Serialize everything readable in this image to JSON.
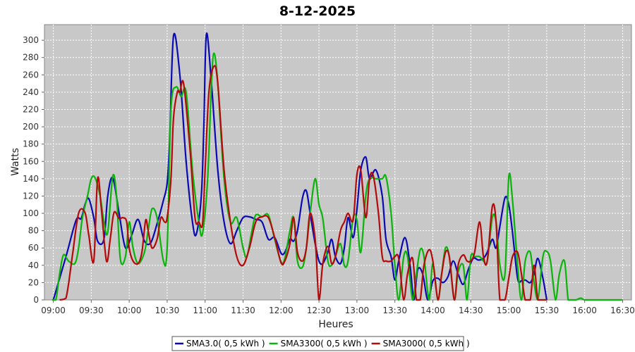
{
  "chart_data": {
    "type": "line",
    "title": "8-12-2025",
    "xlabel": "Heures",
    "ylabel": "Watts",
    "x_ticks": [
      "09:00",
      "09:30",
      "10:00",
      "10:30",
      "11:00",
      "11:30",
      "12:00",
      "12:30",
      "13:00",
      "13:30",
      "14:00",
      "14:30",
      "15:00",
      "15:30",
      "16:00",
      "16:30"
    ],
    "y_ticks": [
      0,
      20,
      40,
      60,
      80,
      100,
      120,
      140,
      160,
      180,
      200,
      220,
      240,
      260,
      280,
      300
    ],
    "xlim": [
      "08:53",
      "16:37"
    ],
    "ylim": [
      0,
      318
    ],
    "grid": true,
    "legend_position": "bottom",
    "background": "#c8c8c8",
    "series": [
      {
        "name": "SMA3.0( 0,5 kWh )",
        "color": "#0a0ab4",
        "x": [
          "09:00",
          "09:10",
          "09:18",
          "09:22",
          "09:25",
          "09:28",
          "09:32",
          "09:35",
          "09:40",
          "09:43",
          "09:47",
          "09:52",
          "09:57",
          "10:02",
          "10:07",
          "10:12",
          "10:17",
          "10:22",
          "10:27",
          "10:30",
          "10:32",
          "10:35",
          "10:40",
          "10:45",
          "10:50",
          "10:53",
          "10:57",
          "10:59",
          "11:01",
          "11:05",
          "11:10",
          "11:15",
          "11:20",
          "11:25",
          "11:30",
          "11:35",
          "11:40",
          "11:45",
          "11:50",
          "11:55",
          "12:00",
          "12:03",
          "12:07",
          "12:10",
          "12:13",
          "12:17",
          "12:20",
          "12:23",
          "12:27",
          "12:30",
          "12:33",
          "12:37",
          "12:40",
          "12:43",
          "12:47",
          "12:50",
          "12:53",
          "12:57",
          "13:00",
          "13:03",
          "13:07",
          "13:10",
          "13:15",
          "13:20",
          "13:23",
          "13:27",
          "13:30",
          "13:33",
          "13:38",
          "13:42",
          "13:45",
          "13:48",
          "13:52",
          "13:56",
          "14:00",
          "14:04",
          "14:08",
          "14:12",
          "14:16",
          "14:20",
          "14:24",
          "14:28",
          "14:32",
          "14:36",
          "14:40",
          "14:43",
          "14:47",
          "14:50",
          "14:53",
          "14:57",
          "15:00",
          "15:03",
          "15:07",
          "15:10",
          "15:13",
          "15:17",
          "15:20",
          "15:23",
          "15:27",
          "15:30"
        ],
        "y": [
          0,
          50,
          92,
          94,
          110,
          117,
          95,
          68,
          70,
          120,
          141,
          100,
          60,
          75,
          93,
          68,
          66,
          88,
          115,
          135,
          185,
          305,
          260,
          160,
          90,
          76,
          120,
          200,
          307,
          250,
          150,
          90,
          65,
          80,
          95,
          96,
          93,
          90,
          70,
          72,
          54,
          55,
          70,
          68,
          80,
          118,
          126,
          100,
          65,
          45,
          42,
          55,
          70,
          50,
          42,
          60,
          95,
          72,
          105,
          150,
          165,
          140,
          150,
          120,
          70,
          50,
          23,
          45,
          72,
          40,
          0,
          35,
          30,
          0,
          22,
          25,
          20,
          27,
          45,
          30,
          18,
          35,
          48,
          46,
          48,
          55,
          70,
          60,
          85,
          118,
          110,
          78,
          25,
          22,
          23,
          20,
          30,
          48,
          25,
          0
        ]
      },
      {
        "name": "SMA3300( 0,5 kWh )",
        "color": "#0ab40a",
        "x": [
          "08:59",
          "09:02",
          "09:05",
          "09:08",
          "09:12",
          "09:17",
          "09:20",
          "09:23",
          "09:27",
          "09:30",
          "09:33",
          "09:37",
          "09:40",
          "09:43",
          "09:47",
          "09:50",
          "09:53",
          "09:57",
          "10:00",
          "10:03",
          "10:07",
          "10:12",
          "10:15",
          "10:18",
          "10:22",
          "10:27",
          "10:30",
          "10:33",
          "10:37",
          "10:41",
          "10:45",
          "10:50",
          "10:55",
          "10:58",
          "11:02",
          "11:05",
          "11:07",
          "11:10",
          "11:15",
          "11:20",
          "11:25",
          "11:30",
          "11:33",
          "11:37",
          "11:40",
          "11:45",
          "11:50",
          "11:55",
          "12:00",
          "12:03",
          "12:07",
          "12:10",
          "12:13",
          "12:17",
          "12:20",
          "12:23",
          "12:27",
          "12:30",
          "12:33",
          "12:37",
          "12:40",
          "12:43",
          "12:47",
          "12:50",
          "12:53",
          "12:57",
          "13:00",
          "13:03",
          "13:07",
          "13:10",
          "13:15",
          "13:20",
          "13:23",
          "13:27",
          "13:30",
          "13:33",
          "13:37",
          "13:40",
          "13:44",
          "13:47",
          "13:50",
          "13:53",
          "13:57",
          "14:00",
          "14:04",
          "14:07",
          "14:10",
          "14:13",
          "14:17",
          "14:20",
          "14:24",
          "14:27",
          "14:30",
          "14:33",
          "14:37",
          "14:40",
          "14:43",
          "14:47",
          "14:50",
          "14:53",
          "14:57",
          "15:00",
          "15:03",
          "15:07",
          "15:10",
          "15:13",
          "15:17",
          "15:20",
          "15:23",
          "15:27",
          "15:30",
          "15:33",
          "15:37",
          "15:40",
          "15:44",
          "15:47",
          "15:50",
          "15:53",
          "15:57",
          "16:00",
          "16:10",
          "16:20",
          "16:30"
        ],
        "y": [
          0,
          0,
          30,
          52,
          45,
          42,
          60,
          95,
          120,
          140,
          141,
          120,
          90,
          78,
          143,
          120,
          47,
          50,
          90,
          60,
          42,
          55,
          80,
          105,
          95,
          45,
          60,
          220,
          246,
          235,
          240,
          150,
          90,
          77,
          140,
          250,
          285,
          250,
          140,
          90,
          95,
          60,
          50,
          80,
          98,
          96,
          98,
          70,
          44,
          48,
          80,
          95,
          45,
          38,
          60,
          100,
          140,
          110,
          94,
          45,
          40,
          50,
          65,
          40,
          45,
          95,
          92,
          55,
          120,
          140,
          140,
          140,
          142,
          100,
          40,
          0,
          50,
          50,
          0,
          30,
          58,
          50,
          0,
          42,
          0,
          30,
          60,
          50,
          0,
          32,
          40,
          0,
          50,
          50,
          50,
          45,
          45,
          95,
          90,
          40,
          30,
          142,
          115,
          40,
          0,
          45,
          55,
          20,
          0,
          50,
          56,
          45,
          0,
          30,
          45,
          0,
          0,
          0,
          2,
          0,
          0,
          0,
          0
        ]
      },
      {
        "name": "SMA3000( 0,5 kWh )",
        "color": "#b40a0a",
        "x": [
          "09:05",
          "09:10",
          "09:15",
          "09:20",
          "09:25",
          "09:28",
          "09:32",
          "09:35",
          "09:38",
          "09:42",
          "09:45",
          "09:48",
          "09:52",
          "09:55",
          "09:58",
          "10:00",
          "10:03",
          "10:07",
          "10:10",
          "10:13",
          "10:15",
          "10:18",
          "10:22",
          "10:25",
          "10:28",
          "10:30",
          "10:33",
          "10:35",
          "10:38",
          "10:40",
          "10:43",
          "10:48",
          "10:52",
          "10:55",
          "10:58",
          "11:00",
          "11:03",
          "11:07",
          "11:10",
          "11:15",
          "11:20",
          "11:25",
          "11:30",
          "11:35",
          "11:40",
          "11:45",
          "11:50",
          "11:55",
          "12:00",
          "12:03",
          "12:07",
          "12:10",
          "12:13",
          "12:17",
          "12:20",
          "12:23",
          "12:27",
          "12:30",
          "12:33",
          "12:37",
          "12:40",
          "12:43",
          "12:47",
          "12:50",
          "12:53",
          "12:57",
          "13:00",
          "13:03",
          "13:07",
          "13:10",
          "13:13",
          "13:17",
          "13:20",
          "13:23",
          "13:27",
          "13:30",
          "13:33",
          "13:37",
          "13:40",
          "13:44",
          "13:47",
          "13:50",
          "13:53",
          "13:57",
          "14:00",
          "14:04",
          "14:07",
          "14:10",
          "14:13",
          "14:17",
          "14:20",
          "14:24",
          "14:27",
          "14:30",
          "14:33",
          "14:37",
          "14:40",
          "14:43",
          "14:47",
          "14:50",
          "14:53",
          "14:57",
          "15:00",
          "15:03",
          "15:07",
          "15:10",
          "15:13",
          "15:17",
          "15:20",
          "15:23",
          "15:27",
          "15:30"
        ],
        "y": [
          0,
          2,
          50,
          100,
          101,
          75,
          45,
          140,
          105,
          45,
          70,
          101,
          94,
          95,
          90,
          60,
          45,
          42,
          55,
          92,
          80,
          60,
          70,
          95,
          90,
          95,
          140,
          210,
          240,
          240,
          250,
          175,
          95,
          90,
          88,
          150,
          240,
          270,
          250,
          150,
          90,
          50,
          40,
          60,
          90,
          96,
          95,
          72,
          43,
          45,
          65,
          95,
          55,
          45,
          60,
          100,
          70,
          0,
          42,
          62,
          42,
          50,
          80,
          90,
          100,
          92,
          145,
          150,
          95,
          140,
          143,
          100,
          50,
          45,
          45,
          50,
          48,
          0,
          30,
          48,
          0,
          0,
          40,
          58,
          45,
          0,
          30,
          55,
          50,
          0,
          40,
          52,
          45,
          45,
          55,
          90,
          50,
          45,
          108,
          90,
          0,
          0,
          25,
          50,
          55,
          30,
          0,
          0,
          40,
          0,
          0,
          0
        ]
      }
    ]
  }
}
